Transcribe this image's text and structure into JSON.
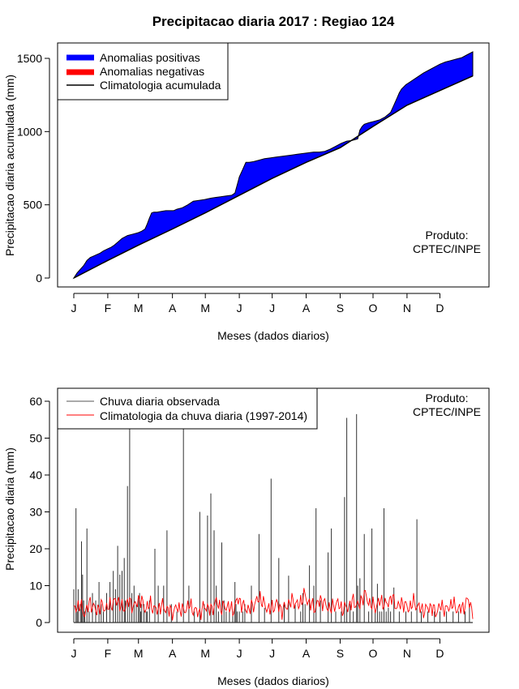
{
  "colors": {
    "positive": "#0000ff",
    "negative": "#ff0000",
    "climatology_line": "#000000",
    "daily_bar": "#000000",
    "daily_clim": "#ff0000",
    "frame": "#000000"
  },
  "chart_data": [
    {
      "type": "area",
      "title": "Precipitacao diaria 2017 : Regiao 124",
      "xlabel": "Meses (dados diarios)",
      "ylabel": "Precipitacao diaria acumulada (mm)",
      "xlim": [
        1,
        365
      ],
      "ylim": [
        0,
        1500
      ],
      "yticks": [
        0,
        500,
        1000,
        1500
      ],
      "months": [
        "J",
        "F",
        "M",
        "A",
        "M",
        "J",
        "J",
        "A",
        "S",
        "O",
        "N",
        "D"
      ],
      "month_start_days": [
        1,
        32,
        60,
        91,
        121,
        152,
        182,
        213,
        244,
        274,
        305,
        335
      ],
      "legend": [
        "Anomalias positivas",
        "Anomalias negativas",
        "Climatologia acumulada"
      ],
      "annotation": [
        "Produto:",
        "CPTEC/INPE"
      ],
      "climatology_cumulative": {
        "days": [
          1,
          32,
          60,
          91,
          121,
          152,
          182,
          213,
          244,
          274,
          305,
          335,
          365
        ],
        "values": [
          0,
          120,
          225,
          335,
          445,
          565,
          680,
          790,
          890,
          1035,
          1180,
          1280,
          1380
        ]
      },
      "observed_cumulative": {
        "days": [
          1,
          4,
          7,
          10,
          13,
          16,
          19,
          22,
          25,
          28,
          32,
          35,
          38,
          42,
          45,
          50,
          55,
          60,
          63,
          66,
          68,
          70,
          72,
          74,
          77,
          81,
          85,
          89,
          92,
          95,
          100,
          105,
          110,
          115,
          120,
          123,
          126,
          130,
          135,
          140,
          145,
          148,
          151,
          152,
          155,
          158,
          161,
          165,
          170,
          175,
          180,
          185,
          190,
          195,
          200,
          205,
          210,
          215,
          220,
          225,
          230,
          235,
          240,
          245,
          250,
          255,
          260,
          262,
          264,
          266,
          270,
          275,
          280,
          285,
          290,
          293,
          296,
          298,
          300,
          304,
          308,
          312,
          316,
          320,
          325,
          330,
          335,
          340,
          345,
          350,
          355,
          360,
          365
        ],
        "values": [
          0,
          35,
          60,
          85,
          120,
          140,
          150,
          160,
          170,
          185,
          200,
          210,
          225,
          250,
          270,
          290,
          300,
          310,
          320,
          335,
          370,
          410,
          445,
          450,
          450,
          455,
          460,
          460,
          460,
          470,
          480,
          500,
          525,
          530,
          535,
          540,
          545,
          550,
          555,
          560,
          565,
          580,
          660,
          690,
          740,
          790,
          790,
          795,
          805,
          815,
          820,
          825,
          830,
          835,
          840,
          845,
          850,
          855,
          860,
          860,
          865,
          880,
          900,
          920,
          935,
          940,
          950,
          1010,
          1035,
          1050,
          1060,
          1070,
          1080,
          1100,
          1130,
          1180,
          1230,
          1265,
          1290,
          1320,
          1340,
          1360,
          1380,
          1400,
          1420,
          1440,
          1460,
          1475,
          1485,
          1495,
          1505,
          1525,
          1545
        ]
      }
    },
    {
      "type": "bar",
      "xlabel": "Meses (dados diarios)",
      "ylabel": "Precipitacao diaria (mm)",
      "xlim": [
        1,
        365
      ],
      "ylim": [
        0,
        65
      ],
      "yticks": [
        0,
        10,
        20,
        30,
        40,
        50,
        60
      ],
      "months": [
        "J",
        "F",
        "M",
        "A",
        "M",
        "J",
        "J",
        "A",
        "S",
        "O",
        "N",
        "D"
      ],
      "month_start_days": [
        1,
        32,
        60,
        91,
        121,
        152,
        182,
        213,
        244,
        274,
        305,
        335
      ],
      "legend": [
        "Chuva diaria observada",
        "Climatologia da chuva diaria (1997-2014)"
      ],
      "annotation": [
        "Produto:",
        "CPTEC/INPE"
      ],
      "observed_daily": {
        "days": [
          1,
          3,
          4,
          5,
          7,
          8,
          9,
          10,
          11,
          13,
          15,
          18,
          21,
          24,
          26,
          28,
          31,
          34,
          37,
          39,
          41,
          43,
          45,
          47,
          48,
          50,
          52,
          54,
          56,
          58,
          60,
          61,
          62,
          63,
          65,
          67,
          68,
          70,
          75,
          78,
          83,
          86,
          90,
          95,
          101,
          106,
          111,
          116,
          120,
          123,
          126,
          129,
          131,
          133,
          136,
          138,
          140,
          143,
          146,
          148,
          149,
          150,
          152,
          155,
          157,
          163,
          170,
          175,
          181,
          188,
          193,
          197,
          203,
          208,
          210,
          212,
          216,
          220,
          222,
          226,
          233,
          236,
          240,
          245,
          248,
          250,
          253,
          256,
          259,
          260,
          262,
          266,
          270,
          273,
          276,
          278,
          280,
          282,
          284,
          286,
          288,
          290,
          293,
          298,
          304,
          309,
          314,
          318,
          324,
          330,
          335,
          341,
          347,
          352,
          358,
          362
        ],
        "values": [
          9,
          31,
          3,
          9,
          5,
          22,
          13,
          6,
          3,
          25.5,
          3,
          8,
          6,
          11,
          5,
          3,
          8,
          11,
          14,
          9,
          20.8,
          13,
          14,
          17.5,
          6,
          37,
          64,
          8,
          10,
          5,
          7,
          8,
          3,
          5,
          5,
          3,
          3,
          6,
          20,
          10,
          10,
          25,
          5,
          3,
          64,
          10,
          3,
          30,
          5,
          29,
          35,
          25,
          10,
          3,
          21.7,
          6,
          3,
          3,
          3,
          11,
          5,
          3,
          3,
          3,
          5,
          10,
          24,
          4,
          39,
          17.5,
          5,
          12.7,
          5,
          3,
          8,
          5,
          15.5,
          10,
          31,
          6,
          19,
          25.5,
          3,
          3,
          34,
          55.5,
          5,
          3,
          56.5,
          10,
          12,
          24,
          3,
          25.5,
          3,
          10.5,
          3,
          3,
          31,
          3,
          4,
          3,
          9.5,
          3,
          3,
          3,
          28,
          3,
          3,
          3,
          3,
          3,
          3,
          3,
          3,
          5
        ]
      },
      "climatology_daily": {
        "days": [
          1,
          6,
          11,
          16,
          21,
          26,
          31,
          36,
          41,
          46,
          51,
          56,
          61,
          66,
          71,
          76,
          81,
          86,
          91,
          96,
          101,
          106,
          111,
          116,
          121,
          126,
          131,
          136,
          141,
          146,
          151,
          156,
          161,
          166,
          171,
          176,
          181,
          186,
          191,
          196,
          201,
          206,
          211,
          216,
          221,
          226,
          231,
          236,
          241,
          246,
          251,
          256,
          261,
          266,
          271,
          276,
          281,
          286,
          291,
          296,
          301,
          306,
          311,
          316,
          321,
          326,
          331,
          336,
          341,
          346,
          351,
          356,
          361,
          365
        ],
        "values": [
          3.5,
          4.8,
          2.5,
          5.5,
          3.2,
          4.5,
          3.8,
          5.2,
          6.0,
          3.5,
          5.8,
          4.2,
          6.5,
          3.8,
          5.0,
          3.2,
          4.6,
          3.5,
          2.8,
          4.2,
          3.0,
          4.8,
          3.3,
          2.6,
          4.5,
          3.2,
          5.6,
          3.8,
          4.6,
          3.2,
          6.4,
          4.2,
          3.5,
          5.2,
          6.8,
          4.2,
          3.6,
          5.2,
          3.2,
          4.8,
          6.0,
          4.5,
          7.5,
          5.2,
          4.0,
          6.2,
          4.6,
          3.8,
          5.4,
          3.6,
          4.2,
          5.8,
          4.4,
          7.8,
          5.2,
          4.2,
          6.0,
          4.8,
          6.8,
          4.2,
          5.4,
          3.8,
          5.5,
          4.0,
          3.2,
          4.4,
          2.8,
          4.5,
          3.4,
          5.2,
          3.6,
          4.0,
          6.2,
          3.0
        ]
      }
    }
  ]
}
